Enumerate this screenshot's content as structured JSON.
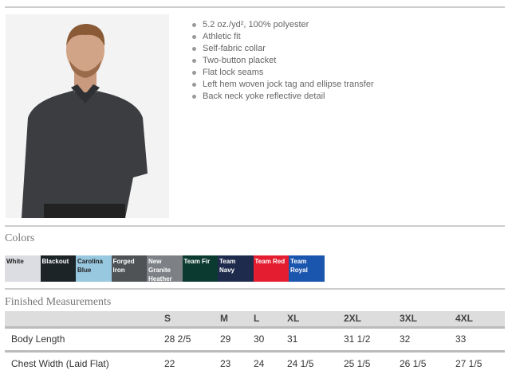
{
  "features": [
    "5.2 oz./yd², 100% polyester",
    "Athletic fit",
    "Self-fabric collar",
    "Two-button placket",
    "Flat lock seams",
    "Left hem woven jock tag and ellipse transfer",
    "Back neck yoke reflective detail"
  ],
  "colors_heading": "Colors",
  "colors": [
    {
      "name": "White",
      "hex": "#dcdde3",
      "text": "#222"
    },
    {
      "name": "Blackout",
      "hex": "#1c2428",
      "text": "#fff"
    },
    {
      "name": "Carolina Blue",
      "hex": "#98c8e0",
      "text": "#222"
    },
    {
      "name": "Forged Iron",
      "hex": "#505355",
      "text": "#fff"
    },
    {
      "name": "New Granite Heather",
      "hex": "#7d8085",
      "text": "#fff"
    },
    {
      "name": "Team Fir",
      "hex": "#0b3b30",
      "text": "#fff"
    },
    {
      "name": "Team Navy",
      "hex": "#1f2b4d",
      "text": "#fff"
    },
    {
      "name": "Team Red",
      "hex": "#e41e30",
      "text": "#fff"
    },
    {
      "name": "Team Royal",
      "hex": "#1a55ae",
      "text": "#fff"
    }
  ],
  "measurements_heading": "Finished Measurements",
  "table": {
    "headers": [
      "",
      "S",
      "M",
      "L",
      "XL",
      "2XL",
      "3XL",
      "4XL"
    ],
    "rows": [
      [
        "Body Length",
        "28 2/5",
        "29",
        "30",
        "31",
        "31 1/2",
        "32",
        "33"
      ],
      [
        "Chest Width (Laid Flat)",
        "22",
        "23",
        "24",
        "24 1/5",
        "25 1/5",
        "26 1/5",
        "27 1/5"
      ]
    ]
  }
}
